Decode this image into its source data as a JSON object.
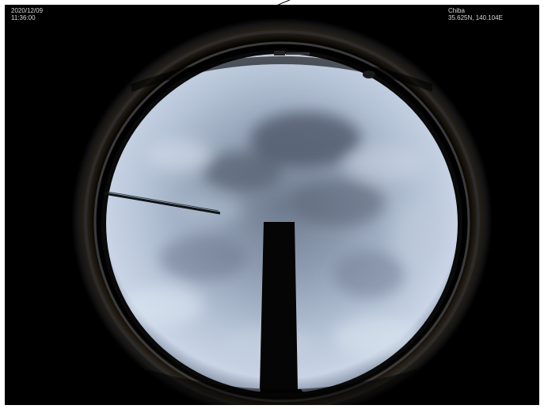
{
  "overlay": {
    "date": "2020/12/09",
    "time": "11:36:00",
    "location": "Chiba",
    "coordinates": "35.625N, 140.104E"
  },
  "scene": {
    "background_color": "#000000",
    "sky_color": "#a9b6c9",
    "cloud_dark_color": "#5a6474",
    "ring_color": "#1a1410",
    "icons": [
      "fisheye-lens",
      "chimney-silhouette",
      "antenna-rod"
    ]
  }
}
